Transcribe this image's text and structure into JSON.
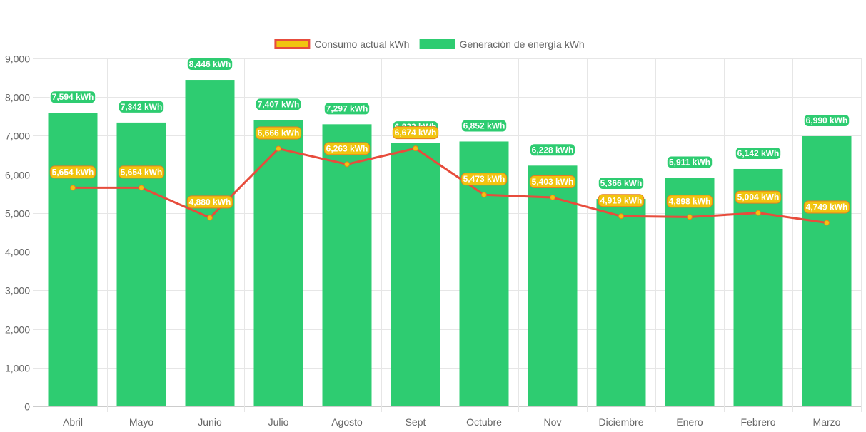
{
  "chart_data": {
    "type": "bar",
    "categories": [
      "Abril",
      "Mayo",
      "Junio",
      "Julio",
      "Agosto",
      "Sept",
      "Octubre",
      "Nov",
      "Diciembre",
      "Enero",
      "Febrero",
      "Marzo"
    ],
    "series": [
      {
        "name": "Generación de energía kWh",
        "type": "bar",
        "color": "#2ecc71",
        "values": [
          7594,
          7342,
          8446,
          7407,
          7297,
          6822,
          6852,
          6228,
          5366,
          5911,
          6142,
          6990
        ],
        "labels": [
          "7,594 kWh",
          "7,342 kWh",
          "8,446 kWh",
          "7,407 kWh",
          "7,297 kWh",
          "6,822 kWh",
          "6,852 kWh",
          "6,228 kWh",
          "5,366 kWh",
          "5,911 kWh",
          "6,142 kWh",
          "6,990 kWh"
        ]
      },
      {
        "name": "Consumo actual kWh",
        "type": "line",
        "color": "#e74c3c",
        "point_color": "#f1c40f",
        "values": [
          5654,
          5654,
          4880,
          6666,
          6263,
          6674,
          5473,
          5403,
          4919,
          4898,
          5004,
          4749
        ],
        "labels": [
          "5,654 kWh",
          "5,654 kWh",
          "4,880 kWh",
          "6,666 kWh",
          "6,263 kWh",
          "6,674 kWh",
          "5,473 kWh",
          "5,403 kWh",
          "4,919 kWh",
          "4,898 kWh",
          "5,004 kWh",
          "4,749 kWh"
        ]
      }
    ],
    "legend": {
      "position": "top",
      "items": [
        {
          "label": "Consumo actual kWh",
          "fill": "#f1c40f",
          "stroke": "#e74c3c"
        },
        {
          "label": "Generación de energía kWh",
          "fill": "#2ecc71",
          "stroke": "#2ecc71"
        }
      ]
    },
    "ylim": [
      0,
      9000
    ],
    "yticks": [
      0,
      1000,
      2000,
      3000,
      4000,
      5000,
      6000,
      7000,
      8000,
      9000
    ],
    "ytick_labels": [
      "0",
      "1,000",
      "2,000",
      "3,000",
      "4,000",
      "5,000",
      "6,000",
      "7,000",
      "8,000",
      "9,000"
    ],
    "grid": true,
    "title": "",
    "xlabel": "",
    "ylabel": ""
  }
}
